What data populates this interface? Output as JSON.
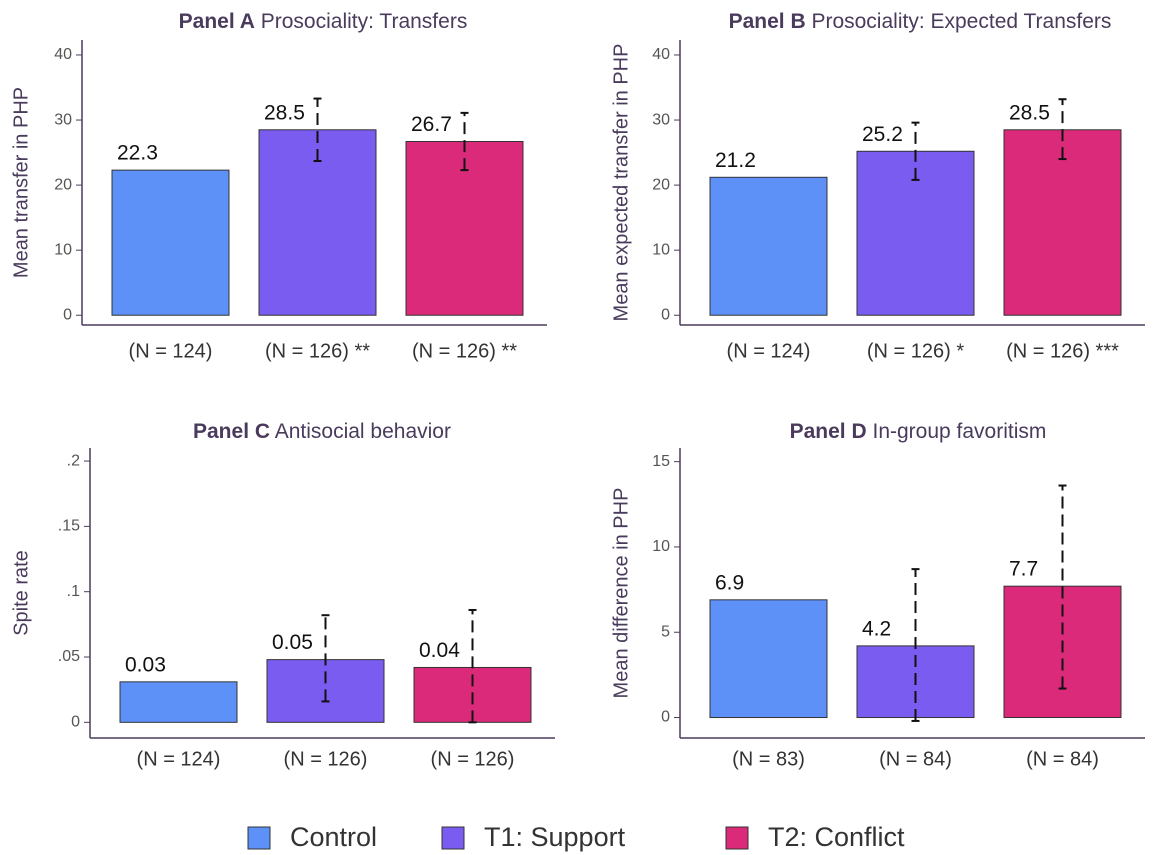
{
  "chart_data": [
    {
      "type": "bar",
      "title_bold": "Panel A",
      "title": "Prosociality: Transfers",
      "ylabel": "Mean transfer in PHP",
      "categories": [
        "(N = 124)",
        "(N = 126) **",
        "(N = 126) **"
      ],
      "values": [
        22.3,
        28.5,
        26.7
      ],
      "error_low": [
        null,
        23.7,
        22.3
      ],
      "error_high": [
        null,
        33.3,
        31.1
      ],
      "colors": [
        "#5e91f8",
        "#7b5cf0",
        "#dc2a7a"
      ],
      "ylim": [
        -1.5,
        42.3
      ],
      "yticks": [
        0,
        10,
        20,
        30,
        40
      ]
    },
    {
      "type": "bar",
      "title_bold": "Panel B",
      "title": "Prosociality: Expected Transfers",
      "ylabel": "Mean expected transfer in PHP",
      "categories": [
        "(N = 124)",
        "(N = 126) *",
        "(N = 126) ***"
      ],
      "values": [
        21.2,
        25.2,
        28.5
      ],
      "error_low": [
        null,
        20.8,
        24.0
      ],
      "error_high": [
        null,
        29.6,
        33.2
      ],
      "colors": [
        "#5e91f8",
        "#7b5cf0",
        "#dc2a7a"
      ],
      "ylim": [
        -1.5,
        42.3
      ],
      "yticks": [
        0,
        10,
        20,
        30,
        40
      ]
    },
    {
      "type": "bar",
      "title_bold": "Panel C",
      "title": "Antisocial behavior",
      "ylabel": "Spite rate",
      "categories": [
        "(N = 124)",
        "(N = 126)",
        "(N = 126)"
      ],
      "values": [
        0.031,
        0.048,
        0.042
      ],
      "value_labels": [
        "0.03",
        "0.05",
        "0.04"
      ],
      "error_low": [
        null,
        0.016,
        0.0
      ],
      "error_high": [
        null,
        0.082,
        0.086
      ],
      "colors": [
        "#5e91f8",
        "#7b5cf0",
        "#dc2a7a"
      ],
      "ylim": [
        -0.012,
        0.21
      ],
      "yticks": [
        0,
        {
          "value": 0.05,
          "label": ".05"
        },
        {
          "value": 0.1,
          "label": ".1"
        },
        {
          "value": 0.15,
          "label": ".15"
        },
        {
          "value": 0.2,
          "label": ".2"
        }
      ]
    },
    {
      "type": "bar",
      "title_bold": "Panel D",
      "title": "In-group favoritism",
      "ylabel": "Mean difference in PHP",
      "categories": [
        "(N = 83)",
        "(N = 84)",
        "(N = 84)"
      ],
      "values": [
        6.9,
        4.2,
        7.7
      ],
      "error_low": [
        null,
        -0.2,
        1.7
      ],
      "error_high": [
        null,
        8.7,
        13.6
      ],
      "colors": [
        "#5e91f8",
        "#7b5cf0",
        "#dc2a7a"
      ],
      "ylim": [
        -1.2,
        15.8
      ],
      "yticks": [
        0,
        5,
        10,
        15
      ]
    }
  ],
  "legend": [
    {
      "name": "Control",
      "color": "#5e91f8"
    },
    {
      "name": "T1: Support",
      "color": "#7b5cf0"
    },
    {
      "name": "T2: Conflict",
      "color": "#dc2a7a"
    }
  ]
}
